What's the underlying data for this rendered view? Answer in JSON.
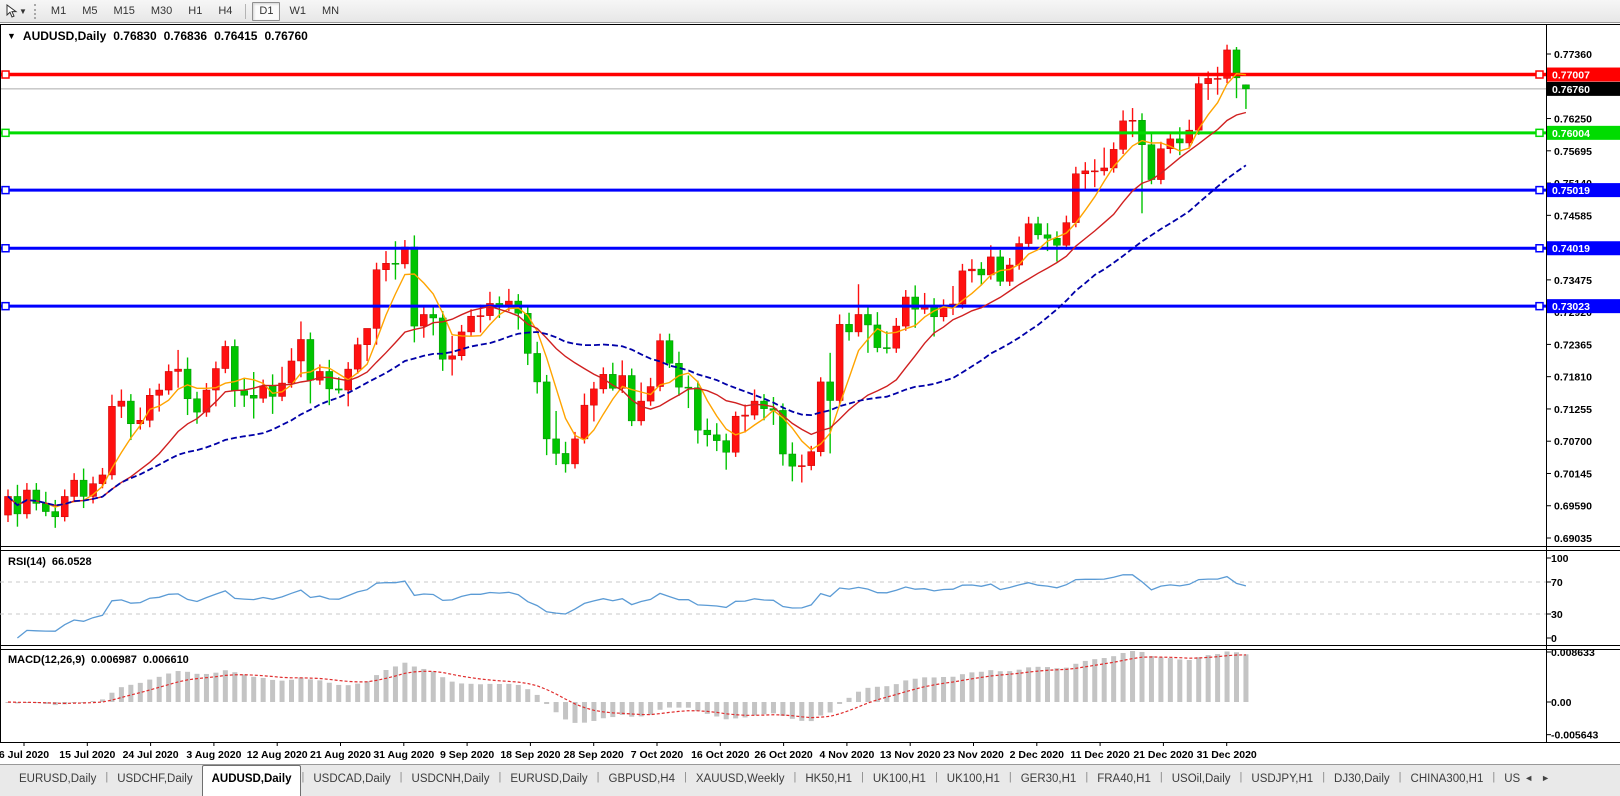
{
  "toolbar": {
    "dropdown_caret": "▼",
    "timeframes": [
      "M1",
      "M5",
      "M15",
      "M30",
      "H1",
      "H4",
      "D1",
      "W1",
      "MN"
    ],
    "active_timeframe": "D1"
  },
  "title": {
    "dropdown_caret": "▼",
    "symbol": "AUDUSD,Daily",
    "open": "0.76830",
    "high": "0.76836",
    "low": "0.76415",
    "close": "0.76760"
  },
  "price_axis": {
    "labels": [
      "0.77360",
      "0.76250",
      "0.75695",
      "0.75140",
      "0.74585",
      "0.73475",
      "0.72920",
      "0.72365",
      "0.71810",
      "0.71255",
      "0.70700",
      "0.70145",
      "0.69590",
      "0.69035"
    ],
    "step": 0.00555,
    "current_price": {
      "label": "0.76760",
      "value": 0.7676,
      "badge_bg": "#000000",
      "line_color": "#ABABAB"
    }
  },
  "hlines": [
    {
      "label": "0.77007",
      "value": 0.77007,
      "color": "#FF0000"
    },
    {
      "label": "0.76004",
      "value": 0.76004,
      "color": "#00DC00"
    },
    {
      "label": "0.75019",
      "value": 0.75019,
      "color": "#0000FF"
    },
    {
      "label": "0.74019",
      "value": 0.74019,
      "color": "#0000FF"
    },
    {
      "label": "0.73023",
      "value": 0.73023,
      "color": "#0000FF"
    }
  ],
  "x_axis": {
    "labels": [
      "6 Jul 2020",
      "15 Jul 2020",
      "24 Jul 2020",
      "3 Aug 2020",
      "12 Aug 2020",
      "21 Aug 2020",
      "31 Aug 2020",
      "9 Sep 2020",
      "18 Sep 2020",
      "28 Sep 2020",
      "7 Oct 2020",
      "16 Oct 2020",
      "26 Oct 2020",
      "4 Nov 2020",
      "13 Nov 2020",
      "23 Nov 2020",
      "2 Dec 2020",
      "11 Dec 2020",
      "21 Dec 2020",
      "31 Dec 2020"
    ]
  },
  "rsi": {
    "label": "RSI(14)",
    "value": "66.0528",
    "period": 14,
    "axis_labels": [
      {
        "text": "100",
        "value": 100
      },
      {
        "text": "70",
        "value": 70
      },
      {
        "text": "30",
        "value": 30
      },
      {
        "text": "0",
        "value": 0
      }
    ],
    "levels": [
      70,
      30
    ],
    "line_color": "#5B9BD5",
    "level_color": "#C8C8C8"
  },
  "macd": {
    "label": "MACD(12,26,9)",
    "value_main": "0.006987",
    "value_signal": "0.006610",
    "fast": 12,
    "slow": 26,
    "signal": 9,
    "axis_labels": [
      {
        "text": "0.008633",
        "value": 0.008633
      },
      {
        "text": "0.00",
        "value": 0
      },
      {
        "text": "-0.005643",
        "value": -0.005643
      }
    ],
    "histogram_color": "#C4C4C4",
    "signal_color": "#E02D2D"
  },
  "tabs": {
    "items": [
      "EURUSD,Daily",
      "USDCHF,Daily",
      "AUDUSD,Daily",
      "USDCAD,Daily",
      "USDCNH,Daily",
      "EURUSD,Daily",
      "GBPUSD,H4",
      "XAUUSD,Weekly",
      "HK50,H1",
      "UK100,H1",
      "UK100,H1",
      "GER30,H1",
      "FRA40,H1",
      "USOil,Daily",
      "USDJPY,H1",
      "DJ30,Daily",
      "CHINA300,H1",
      "US"
    ],
    "active_index": 2,
    "scroll_left": "◄",
    "scroll_right": "►"
  },
  "chart_data": {
    "type": "candlestick",
    "symbol": "AUDUSD",
    "timeframe": "Daily",
    "first_visible_date": "6 Jul 2020",
    "up_color": "#FF1010",
    "down_color": "#00C400",
    "up_stroke": "#C40000",
    "down_stroke": "#008F00",
    "ylim": [
      0.68864,
      0.77876
    ],
    "moving_averages": [
      {
        "name": "ma-fast",
        "period": 5,
        "color": "#FFA400",
        "style": "solid"
      },
      {
        "name": "ma-mid",
        "period": 13,
        "color": "#D02020",
        "style": "solid"
      },
      {
        "name": "ma-slow",
        "period": 28,
        "color": "#0000A8",
        "style": "dashed"
      }
    ],
    "candles": [
      [
        0.6943,
        0.6987,
        0.6931,
        0.6975
      ],
      [
        0.6975,
        0.6995,
        0.6923,
        0.6945
      ],
      [
        0.6945,
        0.6998,
        0.6937,
        0.6986
      ],
      [
        0.6986,
        0.6998,
        0.6951,
        0.6963
      ],
      [
        0.6963,
        0.6983,
        0.6941,
        0.6949
      ],
      [
        0.6949,
        0.6969,
        0.6921,
        0.694
      ],
      [
        0.694,
        0.6987,
        0.6932,
        0.6975
      ],
      [
        0.6975,
        0.7015,
        0.6967,
        0.7003
      ],
      [
        0.7003,
        0.7023,
        0.6955,
        0.6975
      ],
      [
        0.6975,
        0.7009,
        0.6963,
        0.6997
      ],
      [
        0.6997,
        0.7024,
        0.6989,
        0.7012
      ],
      [
        0.7012,
        0.715,
        0.7004,
        0.713
      ],
      [
        0.713,
        0.7159,
        0.711,
        0.7139
      ],
      [
        0.7139,
        0.7151,
        0.7072,
        0.71
      ],
      [
        0.71,
        0.7128,
        0.709,
        0.7106
      ],
      [
        0.7106,
        0.7161,
        0.7094,
        0.7149
      ],
      [
        0.7149,
        0.7169,
        0.7121,
        0.7158
      ],
      [
        0.7158,
        0.7202,
        0.715,
        0.719
      ],
      [
        0.719,
        0.7227,
        0.7162,
        0.7194
      ],
      [
        0.7194,
        0.7214,
        0.7115,
        0.7143
      ],
      [
        0.7143,
        0.7155,
        0.71,
        0.712
      ],
      [
        0.712,
        0.717,
        0.7112,
        0.7158
      ],
      [
        0.7158,
        0.7207,
        0.713,
        0.7195
      ],
      [
        0.7195,
        0.7243,
        0.7187,
        0.7233
      ],
      [
        0.7233,
        0.7245,
        0.7129,
        0.7157
      ],
      [
        0.7157,
        0.7177,
        0.7129,
        0.7149
      ],
      [
        0.7149,
        0.7189,
        0.7109,
        0.7144
      ],
      [
        0.7144,
        0.7176,
        0.7136,
        0.7165
      ],
      [
        0.7165,
        0.7185,
        0.7117,
        0.7147
      ],
      [
        0.7147,
        0.7198,
        0.7139,
        0.717
      ],
      [
        0.717,
        0.723,
        0.7162,
        0.7208
      ],
      [
        0.7208,
        0.7276,
        0.718,
        0.7245
      ],
      [
        0.7245,
        0.7257,
        0.7135,
        0.7175
      ],
      [
        0.7175,
        0.7202,
        0.7167,
        0.719
      ],
      [
        0.719,
        0.721,
        0.7132,
        0.716
      ],
      [
        0.716,
        0.718,
        0.7152,
        0.7158
      ],
      [
        0.7158,
        0.7206,
        0.713,
        0.7194
      ],
      [
        0.7194,
        0.7248,
        0.7186,
        0.7236
      ],
      [
        0.7236,
        0.7256,
        0.7208,
        0.7264
      ],
      [
        0.7264,
        0.7377,
        0.7236,
        0.7365
      ],
      [
        0.7365,
        0.7397,
        0.7345,
        0.7376
      ],
      [
        0.7376,
        0.7414,
        0.7348,
        0.7375
      ],
      [
        0.7375,
        0.7416,
        0.7367,
        0.7404
      ],
      [
        0.7404,
        0.7424,
        0.724,
        0.7268
      ],
      [
        0.7268,
        0.73,
        0.7248,
        0.7288
      ],
      [
        0.7288,
        0.73,
        0.7252,
        0.7282
      ],
      [
        0.7282,
        0.7294,
        0.7191,
        0.7211
      ],
      [
        0.7211,
        0.7251,
        0.7183,
        0.7217
      ],
      [
        0.7217,
        0.727,
        0.7209,
        0.7258
      ],
      [
        0.7258,
        0.7297,
        0.725,
        0.7285
      ],
      [
        0.7285,
        0.7305,
        0.7257,
        0.7286
      ],
      [
        0.7286,
        0.7327,
        0.7278,
        0.7307
      ],
      [
        0.7307,
        0.7319,
        0.7282,
        0.7302
      ],
      [
        0.7302,
        0.7332,
        0.7294,
        0.7311
      ],
      [
        0.7311,
        0.7323,
        0.7262,
        0.729
      ],
      [
        0.729,
        0.7302,
        0.7201,
        0.7221
      ],
      [
        0.7221,
        0.7241,
        0.7152,
        0.7172
      ],
      [
        0.7172,
        0.7184,
        0.7046,
        0.7074
      ],
      [
        0.7074,
        0.7122,
        0.7029,
        0.7049
      ],
      [
        0.7049,
        0.7069,
        0.7016,
        0.7031
      ],
      [
        0.7031,
        0.7086,
        0.7023,
        0.7074
      ],
      [
        0.7074,
        0.7152,
        0.7066,
        0.7132
      ],
      [
        0.7132,
        0.7172,
        0.7104,
        0.716
      ],
      [
        0.716,
        0.7197,
        0.7152,
        0.7185
      ],
      [
        0.7185,
        0.7205,
        0.7157,
        0.7161
      ],
      [
        0.7161,
        0.7209,
        0.7153,
        0.7183
      ],
      [
        0.7183,
        0.7195,
        0.7096,
        0.7105
      ],
      [
        0.7105,
        0.7171,
        0.7097,
        0.7139
      ],
      [
        0.7139,
        0.7179,
        0.7131,
        0.7164
      ],
      [
        0.7164,
        0.7255,
        0.7156,
        0.7243
      ],
      [
        0.7243,
        0.7255,
        0.7196,
        0.7204
      ],
      [
        0.7204,
        0.7224,
        0.7148,
        0.7163
      ],
      [
        0.7163,
        0.7183,
        0.7127,
        0.7162
      ],
      [
        0.7162,
        0.7174,
        0.7066,
        0.7089
      ],
      [
        0.7089,
        0.7109,
        0.7061,
        0.7081
      ],
      [
        0.7081,
        0.7101,
        0.7053,
        0.7071
      ],
      [
        0.7071,
        0.7083,
        0.7021,
        0.7051
      ],
      [
        0.7051,
        0.7121,
        0.7043,
        0.7113
      ],
      [
        0.7113,
        0.7133,
        0.7085,
        0.7115
      ],
      [
        0.7115,
        0.7159,
        0.7107,
        0.7139
      ],
      [
        0.7139,
        0.7151,
        0.7106,
        0.7126
      ],
      [
        0.7126,
        0.7146,
        0.7098,
        0.7123
      ],
      [
        0.7123,
        0.7135,
        0.7028,
        0.7048
      ],
      [
        0.7048,
        0.7068,
        0.7001,
        0.7027
      ],
      [
        0.7027,
        0.7047,
        0.6999,
        0.7028
      ],
      [
        0.7028,
        0.7062,
        0.702,
        0.7052
      ],
      [
        0.7052,
        0.718,
        0.7044,
        0.7172
      ],
      [
        0.7172,
        0.7222,
        0.7049,
        0.714
      ],
      [
        0.714,
        0.7288,
        0.7132,
        0.7271
      ],
      [
        0.7271,
        0.7291,
        0.7243,
        0.7258
      ],
      [
        0.7258,
        0.734,
        0.725,
        0.7288
      ],
      [
        0.7288,
        0.73,
        0.7222,
        0.727
      ],
      [
        0.727,
        0.7292,
        0.7223,
        0.7231
      ],
      [
        0.7231,
        0.7259,
        0.7221,
        0.723
      ],
      [
        0.723,
        0.7282,
        0.7222,
        0.7268
      ],
      [
        0.7268,
        0.733,
        0.726,
        0.7318
      ],
      [
        0.7318,
        0.7338,
        0.7265,
        0.7297
      ],
      [
        0.7297,
        0.7325,
        0.7289,
        0.7304
      ],
      [
        0.7304,
        0.7316,
        0.725,
        0.7284
      ],
      [
        0.7284,
        0.7314,
        0.7276,
        0.7302
      ],
      [
        0.7302,
        0.7337,
        0.7287,
        0.7306
      ],
      [
        0.7306,
        0.7375,
        0.7298,
        0.7363
      ],
      [
        0.7363,
        0.7383,
        0.7343,
        0.7366
      ],
      [
        0.7366,
        0.7378,
        0.7338,
        0.7356
      ],
      [
        0.7356,
        0.7407,
        0.7348,
        0.7387
      ],
      [
        0.7387,
        0.7399,
        0.7337,
        0.7345
      ],
      [
        0.7345,
        0.7385,
        0.7337,
        0.7373
      ],
      [
        0.7373,
        0.7422,
        0.7365,
        0.741
      ],
      [
        0.741,
        0.7456,
        0.7402,
        0.7444
      ],
      [
        0.7444,
        0.7456,
        0.7417,
        0.7425
      ],
      [
        0.7425,
        0.7445,
        0.7397,
        0.7419
      ],
      [
        0.7419,
        0.7431,
        0.7379,
        0.7407
      ],
      [
        0.7407,
        0.7458,
        0.7399,
        0.7446
      ],
      [
        0.7446,
        0.7542,
        0.7438,
        0.753
      ],
      [
        0.753,
        0.755,
        0.7502,
        0.7535
      ],
      [
        0.7535,
        0.7555,
        0.7507,
        0.7535
      ],
      [
        0.7535,
        0.7575,
        0.7527,
        0.754
      ],
      [
        0.754,
        0.7584,
        0.7532,
        0.7572
      ],
      [
        0.7572,
        0.7639,
        0.7564,
        0.7621
      ],
      [
        0.7621,
        0.7643,
        0.7593,
        0.7622
      ],
      [
        0.7622,
        0.7634,
        0.7462,
        0.758
      ],
      [
        0.758,
        0.76,
        0.7512,
        0.752
      ],
      [
        0.752,
        0.7585,
        0.7512,
        0.7573
      ],
      [
        0.7573,
        0.7602,
        0.7565,
        0.759
      ],
      [
        0.759,
        0.761,
        0.7562,
        0.7583
      ],
      [
        0.7583,
        0.7623,
        0.7575,
        0.7605
      ],
      [
        0.7605,
        0.7697,
        0.7597,
        0.7685
      ],
      [
        0.7685,
        0.7706,
        0.7657,
        0.7694
      ],
      [
        0.7694,
        0.7714,
        0.7666,
        0.7694
      ],
      [
        0.7694,
        0.7752,
        0.7686,
        0.7743
      ],
      [
        0.7743,
        0.7748,
        0.766,
        0.7695
      ],
      [
        0.7683,
        0.76836,
        0.76415,
        0.7676
      ]
    ]
  }
}
